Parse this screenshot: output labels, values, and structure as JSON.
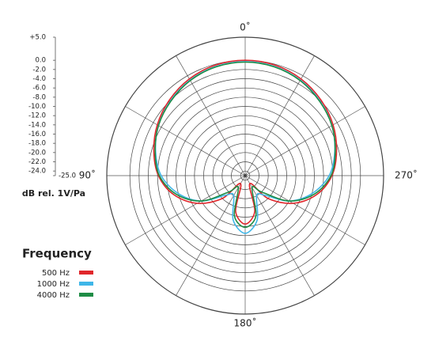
{
  "chart_data": {
    "type": "polar",
    "x": [
      0,
      15,
      30,
      45,
      60,
      75,
      90,
      105,
      120,
      135,
      150,
      165,
      180,
      195,
      210,
      225,
      240,
      255,
      270,
      285,
      300,
      315,
      330,
      345
    ],
    "xticks": [
      {
        "value": 0,
        "label": "0˚"
      },
      {
        "value": 90,
        "label": "90˚"
      },
      {
        "value": 180,
        "label": "180˚"
      },
      {
        "value": 270,
        "label": "270˚"
      }
    ],
    "ylim": [
      -25,
      5
    ],
    "yticks": [
      {
        "value": 5,
        "label": "+5.0"
      },
      {
        "value": 0,
        "label": "0.0"
      },
      {
        "value": -2,
        "label": "-2.0"
      },
      {
        "value": -4,
        "label": "-4.0"
      },
      {
        "value": -6,
        "label": "-6.0"
      },
      {
        "value": -8,
        "label": "-8.0"
      },
      {
        "value": -10,
        "label": "-10.0"
      },
      {
        "value": -12,
        "label": "-12.0"
      },
      {
        "value": -14,
        "label": "-14.0"
      },
      {
        "value": -16,
        "label": "-16.0"
      },
      {
        "value": -18,
        "label": "-18.0"
      },
      {
        "value": -20,
        "label": "-20.0"
      },
      {
        "value": -22,
        "label": "-22.0"
      },
      {
        "value": -24,
        "label": "-24.0"
      },
      {
        "value": -25,
        "label": "-25.0"
      }
    ],
    "y_label": "dB rel. 1V/Pa",
    "legend_title": "Frequency",
    "grid": true,
    "series": [
      {
        "name": "500 Hz",
        "color": "#e0262b",
        "values": [
          0,
          -0.2,
          -0.8,
          -1.8,
          -3.0,
          -4.5,
          -6.2,
          -9,
          -13,
          -18,
          -23,
          -17,
          -14.5,
          -17,
          -23,
          -18,
          -13,
          -9,
          -6.2,
          -4.5,
          -3.0,
          -1.8,
          -0.8,
          -0.2
        ]
      },
      {
        "name": "1000 Hz",
        "color": "#3fb6e8",
        "values": [
          -0.3,
          -0.5,
          -1.1,
          -2.1,
          -3.3,
          -4.9,
          -6.8,
          -10,
          -14,
          -19,
          -20,
          -15,
          -12.5,
          -15,
          -20,
          -19,
          -14,
          -10,
          -6.8,
          -4.9,
          -3.3,
          -2.1,
          -1.1,
          -0.5
        ]
      },
      {
        "name": "4000 Hz",
        "color": "#1e8c45",
        "values": [
          -0.4,
          -0.6,
          -1.2,
          -2.2,
          -3.3,
          -4.8,
          -6.4,
          -9.5,
          -14,
          -20,
          -22,
          -16,
          -13.8,
          -16,
          -22,
          -20,
          -14,
          -9.5,
          -6.4,
          -4.8,
          -3.3,
          -2.2,
          -1.2,
          -0.6
        ]
      }
    ]
  }
}
